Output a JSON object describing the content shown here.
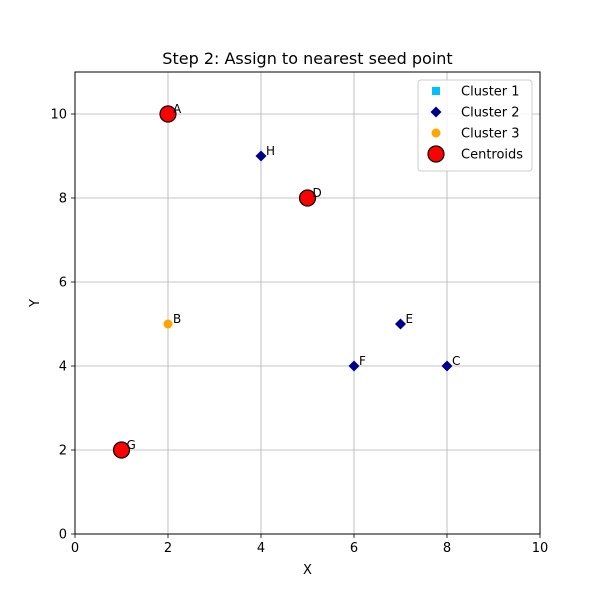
{
  "chart_data": {
    "type": "scatter",
    "title": "Step 2: Assign to nearest seed point",
    "xlabel": "X",
    "ylabel": "Y",
    "xlim": [
      0,
      10
    ],
    "ylim": [
      0,
      11
    ],
    "xticks": [
      0,
      2,
      4,
      6,
      8,
      10
    ],
    "yticks": [
      0,
      2,
      4,
      6,
      8,
      10
    ],
    "grid": true,
    "legend_position": "top-right",
    "series": [
      {
        "name": "Cluster 1",
        "marker": "square",
        "color": "#00bfff",
        "points": []
      },
      {
        "name": "Cluster 2",
        "marker": "diamond",
        "color": "#00008b",
        "points": [
          {
            "label": "H",
            "x": 4,
            "y": 9
          },
          {
            "label": "E",
            "x": 7,
            "y": 5
          },
          {
            "label": "F",
            "x": 6,
            "y": 4
          },
          {
            "label": "C",
            "x": 8,
            "y": 4
          }
        ]
      },
      {
        "name": "Cluster 3",
        "marker": "circle",
        "color": "#ffa500",
        "points": [
          {
            "label": "B",
            "x": 2,
            "y": 5
          }
        ]
      },
      {
        "name": "Centroids",
        "marker": "big-circle",
        "color": "#ff0000",
        "edge_color": "#000000",
        "points": [
          {
            "label": "A",
            "x": 2,
            "y": 10
          },
          {
            "label": "D",
            "x": 5,
            "y": 8
          },
          {
            "label": "G",
            "x": 1,
            "y": 2
          }
        ]
      }
    ]
  }
}
